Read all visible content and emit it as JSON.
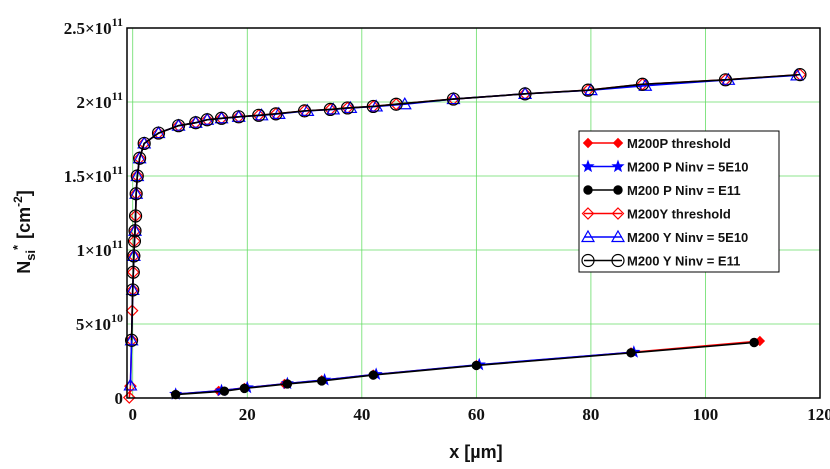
{
  "chart_data": {
    "type": "scatter",
    "xlabel": "x [µm]",
    "ylabel_main": "N",
    "ylabel_sub": "si",
    "ylabel_sup": "*",
    "ylabel_unit": "[cm",
    "ylabel_unit_sup": "-2",
    "ylabel_close": "]",
    "xlim": [
      -1,
      120
    ],
    "ylim": [
      0,
      250000000000.0
    ],
    "grid": true,
    "legend_position": "right",
    "x_ticks": [
      {
        "value": 0,
        "label": "0"
      },
      {
        "value": 20,
        "label": "20"
      },
      {
        "value": 40,
        "label": "40"
      },
      {
        "value": 60,
        "label": "60"
      },
      {
        "value": 80,
        "label": "80"
      },
      {
        "value": 100,
        "label": "100"
      },
      {
        "value": 120,
        "label": "120"
      }
    ],
    "y_ticks": [
      {
        "value": 0,
        "mant": "0",
        "exp": ""
      },
      {
        "value": 50000000000.0,
        "mant": "5×10",
        "exp": "10"
      },
      {
        "value": 100000000000.0,
        "mant": "1×10",
        "exp": "11"
      },
      {
        "value": 150000000000.0,
        "mant": "1.5×10",
        "exp": "11"
      },
      {
        "value": 200000000000.0,
        "mant": "2×10",
        "exp": "11"
      },
      {
        "value": 250000000000.0,
        "mant": "2.5×10",
        "exp": "11"
      }
    ],
    "series": [
      {
        "name": "M200P threshold",
        "color": "#ff0000",
        "marker": "diamond",
        "filled": true,
        "x": [
          7.5,
          15,
          19.5,
          26.5,
          33,
          42,
          60,
          87,
          109.5
        ],
        "y": [
          2600000000.0,
          4800000000.0,
          6800000000.0,
          9500000000.0,
          12000000000.0,
          15800000000.0,
          22200000000.0,
          30800000000.0,
          38500000000.0
        ]
      },
      {
        "name": "M200 P Ninv = 5E10",
        "color": "#0000ff",
        "marker": "star",
        "filled": true,
        "x": [
          7.5,
          15.5,
          20,
          27,
          33.5,
          42.5,
          60.5,
          87.5
        ],
        "y": [
          2600000000.0,
          5000000000.0,
          7000000000.0,
          9800000000.0,
          12200000000.0,
          16000000000.0,
          22500000000.0,
          31000000000.0
        ]
      },
      {
        "name": "M200 P Ninv = E11",
        "color": "#000000",
        "marker": "circle",
        "filled": true,
        "x": [
          7.5,
          16,
          19.5,
          27,
          33,
          42,
          60,
          87,
          108.5
        ],
        "y": [
          2300000000.0,
          4600000000.0,
          6500000000.0,
          9500000000.0,
          11500000000.0,
          15500000000.0,
          22000000000.0,
          30500000000.0,
          37500000000.0
        ]
      },
      {
        "name": "M200Y threshold",
        "color": "#ff0000",
        "marker": "diamond",
        "filled": false,
        "x": [
          -0.6,
          -0.4,
          -0.2,
          -0.1,
          0,
          0.1,
          0.2,
          0.3,
          0.4,
          0.5,
          0.6,
          0.8,
          1.2,
          2,
          4.5,
          8,
          11,
          13,
          15.5,
          18.5,
          22,
          25,
          30,
          34.5,
          37.5,
          42,
          46,
          56,
          68.5,
          79.5,
          89,
          103.5,
          116.5
        ],
        "y": [
          300000000.0,
          8000000000.0,
          39000000000.0,
          59000000000.0,
          73000000000.0,
          85000000000.0,
          96000000000.0,
          106000000000.0,
          113000000000.0,
          123000000000.0,
          138000000000.0,
          150000000000.0,
          162000000000.0,
          172000000000.0,
          179000000000.0,
          184000000000.0,
          186000000000.0,
          188000000000.0,
          189000000000.0,
          190000000000.0,
          191000000000.0,
          192000000000.0,
          194000000000.0,
          195000000000.0,
          196000000000.0,
          197000000000.0,
          198500000000.0,
          202000000000.0,
          205500000000.0,
          208000000000.0,
          212000000000.0,
          215000000000.0,
          218500000000.0
        ]
      },
      {
        "name": "M200 Y Ninv = 5E10",
        "color": "#0000ff",
        "marker": "triangle",
        "filled": false,
        "x": [
          -0.4,
          -0.2,
          0,
          0.2,
          0.4,
          0.6,
          0.8,
          1.2,
          2,
          4.5,
          8,
          11,
          13,
          15.5,
          18.5,
          22.5,
          25.5,
          30.5,
          35,
          38,
          42.5,
          47.5,
          56,
          68.5,
          80,
          89.5,
          104,
          116
        ],
        "y": [
          8500000000.0,
          39000000000.0,
          73000000000.0,
          96000000000.0,
          113000000000.0,
          138000000000.0,
          150000000000.0,
          162000000000.0,
          172000000000.0,
          179000000000.0,
          184000000000.0,
          186000000000.0,
          188000000000.0,
          189000000000.0,
          190000000000.0,
          191000000000.0,
          192000000000.0,
          194000000000.0,
          195000000000.0,
          196000000000.0,
          197000000000.0,
          198500000000.0,
          202000000000.0,
          205500000000.0,
          208000000000.0,
          211000000000.0,
          215000000000.0,
          218000000000.0
        ]
      },
      {
        "name": "M200 Y Ninv = E11",
        "color": "#000000",
        "marker": "circle",
        "filled": false,
        "x": [
          -0.2,
          0,
          0.1,
          0.2,
          0.3,
          0.4,
          0.5,
          0.6,
          0.8,
          1.2,
          2,
          4.5,
          8,
          11,
          13,
          15.5,
          18.5,
          22,
          25,
          30,
          34.5,
          37.5,
          42,
          46,
          56,
          68.5,
          79.5,
          89,
          103.5,
          116.5
        ],
        "y": [
          39000000000.0,
          73000000000.0,
          85000000000.0,
          96000000000.0,
          106000000000.0,
          113000000000.0,
          123000000000.0,
          138000000000.0,
          150000000000.0,
          162000000000.0,
          172000000000.0,
          179000000000.0,
          184000000000.0,
          186000000000.0,
          188000000000.0,
          189000000000.0,
          190000000000.0,
          191000000000.0,
          192000000000.0,
          194000000000.0,
          195000000000.0,
          196000000000.0,
          197000000000.0,
          198500000000.0,
          202000000000.0,
          205500000000.0,
          208000000000.0,
          212000000000.0,
          215000000000.0,
          218500000000.0
        ]
      }
    ]
  }
}
